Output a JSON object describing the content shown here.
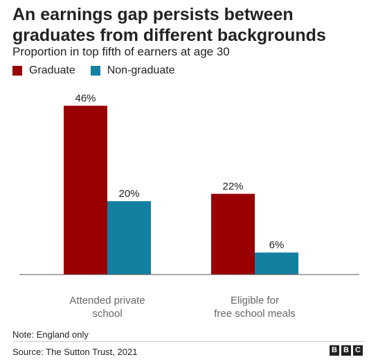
{
  "header": {
    "title": "An earnings gap persists between graduates from different backgrounds",
    "subtitle": "Proportion in top fifth of earners at age 30"
  },
  "chart_data": {
    "type": "bar",
    "categories": [
      "Attended private school",
      "Eligible for free school meals"
    ],
    "category_lines": [
      [
        "Attended private",
        "school"
      ],
      [
        "Eligible for",
        "free school meals"
      ]
    ],
    "series": [
      {
        "name": "Graduate",
        "values": [
          46,
          22
        ],
        "labels": [
          "46%",
          "22%"
        ],
        "color": "#990000"
      },
      {
        "name": "Non-graduate",
        "values": [
          20,
          6
        ],
        "labels": [
          "20%",
          "6%"
        ],
        "color": "#1380a1"
      }
    ],
    "ylim": [
      0,
      50
    ],
    "legend_position": "top-left",
    "grid": false
  },
  "footer": {
    "note": "Note: England only",
    "source": "Source: The Sutton Trust, 2021",
    "logo": [
      "B",
      "B",
      "C"
    ]
  }
}
